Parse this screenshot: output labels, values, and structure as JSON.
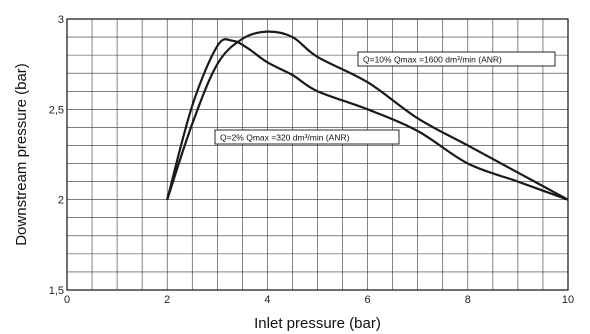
{
  "chart_data": {
    "type": "line",
    "title": "",
    "xlabel": "Inlet pressure (bar)",
    "ylabel": "Downstream pressure (bar)",
    "xlim": [
      0,
      10
    ],
    "ylim": [
      1.5,
      3
    ],
    "x_ticks": [
      0,
      2,
      4,
      6,
      8,
      10
    ],
    "x_tick_labels": [
      "0",
      "2",
      "4",
      "6",
      "8",
      "10"
    ],
    "y_ticks": [
      1.5,
      2,
      2.5,
      3
    ],
    "y_tick_labels": [
      "1,5",
      "2",
      "2,5",
      "3"
    ],
    "grid": true,
    "grid_x_step": 0.5,
    "grid_y_step": 0.1,
    "series": [
      {
        "name": "Q=10% Qmax =1600 dm³/min (ANR)",
        "x": [
          2,
          2.5,
          3.0,
          3.5,
          4.0,
          4.5,
          5.0,
          6.0,
          7.0,
          8.0,
          9.0,
          10.0
        ],
        "y": [
          2.0,
          2.42,
          2.75,
          2.89,
          2.93,
          2.9,
          2.79,
          2.65,
          2.45,
          2.3,
          2.15,
          2.0
        ]
      },
      {
        "name": "Q=2% Qmax =320 dm³/min (ANR)",
        "x": [
          2,
          2.5,
          3.0,
          3.3,
          3.6,
          4.0,
          4.5,
          5.0,
          6.0,
          7.0,
          8.0,
          9.0,
          10.0
        ],
        "y": [
          2.0,
          2.52,
          2.85,
          2.88,
          2.84,
          2.76,
          2.69,
          2.6,
          2.5,
          2.38,
          2.2,
          2.1,
          2.0
        ]
      }
    ],
    "annotations": [
      {
        "text": "Q=10% Qmax =1600 dm³/min (ANR)",
        "series": 0
      },
      {
        "text": "Q=2% Qmax =320 dm³/min (ANR)",
        "series": 1
      }
    ]
  }
}
